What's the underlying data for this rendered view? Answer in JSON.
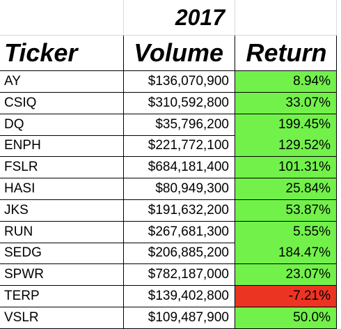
{
  "header": {
    "year": "2017",
    "ticker_label": "Ticker",
    "volume_label": "Volume",
    "return_label": "Return"
  },
  "colors": {
    "positive": "#72f14a",
    "negative": "#ec3423",
    "gridline": "#d9d9d9"
  },
  "rows": [
    {
      "ticker": "AY",
      "volume": "$136,070,900",
      "return": "8.94%",
      "status": "positive"
    },
    {
      "ticker": "CSIQ",
      "volume": "$310,592,800",
      "return": "33.07%",
      "status": "positive"
    },
    {
      "ticker": "DQ",
      "volume": "$35,796,200",
      "return": "199.45%",
      "status": "positive"
    },
    {
      "ticker": "ENPH",
      "volume": "$221,772,100",
      "return": "129.52%",
      "status": "positive"
    },
    {
      "ticker": "FSLR",
      "volume": "$684,181,400",
      "return": "101.31%",
      "status": "positive"
    },
    {
      "ticker": "HASI",
      "volume": "$80,949,300",
      "return": "25.84%",
      "status": "positive"
    },
    {
      "ticker": "JKS",
      "volume": "$191,632,200",
      "return": "53.87%",
      "status": "positive"
    },
    {
      "ticker": "RUN",
      "volume": "$267,681,300",
      "return": "5.55%",
      "status": "positive"
    },
    {
      "ticker": "SEDG",
      "volume": "$206,885,200",
      "return": "184.47%",
      "status": "positive"
    },
    {
      "ticker": "SPWR",
      "volume": "$782,187,000",
      "return": "23.07%",
      "status": "positive"
    },
    {
      "ticker": "TERP",
      "volume": "$139,402,800",
      "return": "-7.21%",
      "status": "negative"
    },
    {
      "ticker": "VSLR",
      "volume": "$109,487,900",
      "return": "50.0%",
      "status": "positive"
    }
  ]
}
